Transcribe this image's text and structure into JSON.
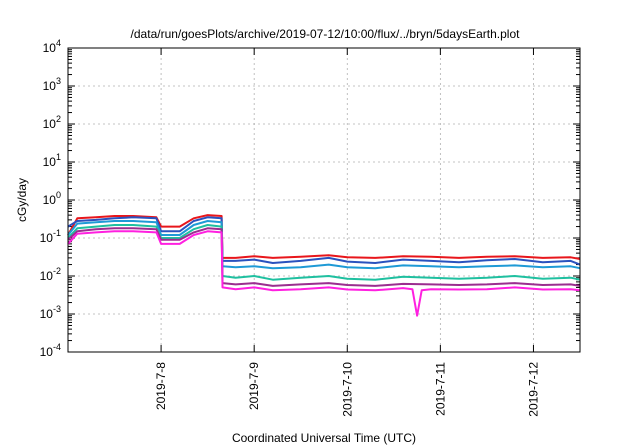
{
  "chart_data": {
    "type": "line",
    "title": "/data/run/goesPlots/archive/2019-07-12/10:00/flux/../bryn/5daysEarth.plot",
    "xlabel": "Coordinated Universal Time (UTC)",
    "ylabel": "cGy/day",
    "yscale": "log",
    "ylim": [
      0.0001,
      10000
    ],
    "xlim": [
      0,
      5.5
    ],
    "grid": true,
    "x_tick_positions": [
      1,
      2,
      3,
      4,
      5
    ],
    "x_tick_labels": [
      "2019-7-8",
      "2019-7-9",
      "2019-7-10",
      "2019-7-11",
      "2019-7-12"
    ],
    "y_ticks": [
      {
        "value": 0.0001,
        "mantissa": "10",
        "exp": "-4"
      },
      {
        "value": 0.001,
        "mantissa": "10",
        "exp": "-3"
      },
      {
        "value": 0.01,
        "mantissa": "10",
        "exp": "-2"
      },
      {
        "value": 0.1,
        "mantissa": "10",
        "exp": "-1"
      },
      {
        "value": 1,
        "mantissa": "10",
        "exp": "0"
      },
      {
        "value": 10,
        "mantissa": "10",
        "exp": "1"
      },
      {
        "value": 100,
        "mantissa": "10",
        "exp": "2"
      },
      {
        "value": 1000,
        "mantissa": "10",
        "exp": "3"
      },
      {
        "value": 10000,
        "mantissa": "10",
        "exp": "4"
      }
    ],
    "series": [
      {
        "color": "#e8161b",
        "x": [
          0,
          0.1,
          0.3,
          0.5,
          0.7,
          0.95,
          1.0,
          1.2,
          1.35,
          1.5,
          1.65,
          1.66,
          1.8,
          2.0,
          2.2,
          2.5,
          2.8,
          3.0,
          3.3,
          3.6,
          3.9,
          4.2,
          4.5,
          4.8,
          5.1,
          5.4,
          5.5
        ],
        "y": [
          0.12,
          0.33,
          0.35,
          0.38,
          0.38,
          0.35,
          0.2,
          0.2,
          0.33,
          0.4,
          0.38,
          0.03,
          0.03,
          0.033,
          0.03,
          0.032,
          0.035,
          0.031,
          0.03,
          0.033,
          0.032,
          0.03,
          0.032,
          0.033,
          0.03,
          0.031,
          0.028
        ]
      },
      {
        "color": "#2a52be",
        "x": [
          0,
          0.1,
          0.3,
          0.5,
          0.7,
          0.95,
          1.0,
          1.2,
          1.35,
          1.5,
          1.65,
          1.66,
          1.8,
          2.0,
          2.2,
          2.5,
          2.8,
          3.0,
          3.3,
          3.6,
          3.9,
          4.2,
          4.5,
          4.8,
          5.1,
          5.4,
          5.5
        ],
        "y": [
          0.2,
          0.28,
          0.3,
          0.33,
          0.35,
          0.33,
          0.15,
          0.15,
          0.28,
          0.35,
          0.33,
          0.025,
          0.025,
          0.027,
          0.022,
          0.025,
          0.03,
          0.024,
          0.022,
          0.027,
          0.025,
          0.023,
          0.026,
          0.028,
          0.023,
          0.025,
          0.02
        ]
      },
      {
        "color": "#1e9ad6",
        "x": [
          0,
          0.1,
          0.3,
          0.5,
          0.7,
          0.95,
          1.0,
          1.2,
          1.35,
          1.5,
          1.65,
          1.66,
          1.8,
          2.0,
          2.2,
          2.5,
          2.8,
          3.0,
          3.3,
          3.6,
          3.9,
          4.2,
          4.5,
          4.8,
          5.1,
          5.4,
          5.5
        ],
        "y": [
          0.12,
          0.24,
          0.26,
          0.28,
          0.28,
          0.26,
          0.12,
          0.12,
          0.22,
          0.28,
          0.26,
          0.018,
          0.017,
          0.018,
          0.016,
          0.017,
          0.02,
          0.017,
          0.016,
          0.019,
          0.018,
          0.017,
          0.018,
          0.019,
          0.017,
          0.018,
          0.016
        ]
      },
      {
        "color": "#1fc0a0",
        "x": [
          0,
          0.1,
          0.3,
          0.5,
          0.7,
          0.95,
          1.0,
          1.2,
          1.35,
          1.5,
          1.65,
          1.66,
          1.8,
          2.0,
          2.2,
          2.5,
          2.8,
          3.0,
          3.3,
          3.6,
          3.9,
          4.2,
          4.5,
          4.8,
          5.1,
          5.4,
          5.5
        ],
        "y": [
          0.1,
          0.18,
          0.2,
          0.22,
          0.22,
          0.2,
          0.1,
          0.1,
          0.17,
          0.22,
          0.2,
          0.01,
          0.009,
          0.01,
          0.008,
          0.009,
          0.01,
          0.0085,
          0.008,
          0.0095,
          0.009,
          0.0085,
          0.009,
          0.01,
          0.0085,
          0.009,
          0.008
        ]
      },
      {
        "color": "#9b2d8f",
        "x": [
          0,
          0.1,
          0.3,
          0.5,
          0.7,
          0.95,
          1.0,
          1.2,
          1.35,
          1.5,
          1.65,
          1.66,
          1.8,
          2.0,
          2.2,
          2.5,
          2.8,
          3.0,
          3.3,
          3.6,
          3.9,
          4.2,
          4.5,
          4.8,
          5.1,
          5.4,
          5.5
        ],
        "y": [
          0.09,
          0.15,
          0.17,
          0.18,
          0.18,
          0.17,
          0.09,
          0.09,
          0.14,
          0.18,
          0.17,
          0.0065,
          0.006,
          0.0065,
          0.0055,
          0.006,
          0.0065,
          0.0058,
          0.0055,
          0.0062,
          0.006,
          0.0058,
          0.006,
          0.0065,
          0.0058,
          0.006,
          0.0055
        ]
      },
      {
        "color": "#ff20e0",
        "x": [
          0,
          0.1,
          0.3,
          0.5,
          0.7,
          0.95,
          1.0,
          1.2,
          1.35,
          1.5,
          1.65,
          1.66,
          1.8,
          2.0,
          2.2,
          2.5,
          2.8,
          3.0,
          3.3,
          3.6,
          3.7,
          3.75,
          3.8,
          3.9,
          4.2,
          4.5,
          4.8,
          5.1,
          5.4,
          5.5
        ],
        "y": [
          0.07,
          0.13,
          0.14,
          0.15,
          0.15,
          0.14,
          0.07,
          0.07,
          0.12,
          0.15,
          0.14,
          0.005,
          0.0045,
          0.005,
          0.0042,
          0.0045,
          0.005,
          0.0044,
          0.0042,
          0.0048,
          0.0045,
          0.0009,
          0.0042,
          0.0045,
          0.0044,
          0.0045,
          0.005,
          0.0044,
          0.0045,
          0.0042
        ]
      }
    ]
  }
}
